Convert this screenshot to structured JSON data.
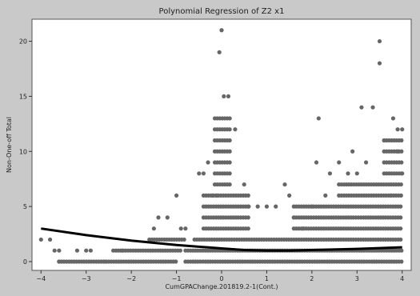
{
  "chart_data": {
    "type": "scatter",
    "title": "Polynomial Regression of Z2 x1",
    "xlabel": "CumGPAChange.201819.2-1(Cont.)",
    "ylabel": "Non-One-off Total",
    "xlim": [
      -4.2,
      4.2
    ],
    "ylim": [
      -0.8,
      22
    ],
    "xticks": [
      -4,
      -3,
      -2,
      -1,
      0,
      1,
      2,
      3,
      4
    ],
    "yticks": [
      0,
      5,
      10,
      15,
      20
    ],
    "grid": false,
    "legend": "none",
    "colors": {
      "points": "#666666",
      "fit": "#000000",
      "panel": "#ffffff",
      "frame": "#c9c9c9"
    },
    "points": [
      [
        -4.0,
        2
      ],
      [
        -3.8,
        2
      ],
      [
        -3.7,
        1
      ],
      [
        -3.6,
        0
      ],
      [
        -3.6,
        1
      ],
      [
        -3.2,
        1
      ],
      [
        -3.0,
        1
      ],
      [
        -2.9,
        1
      ],
      [
        -2.6,
        0
      ],
      [
        -2.2,
        1
      ],
      [
        -1.5,
        3
      ],
      [
        -1.4,
        4
      ],
      [
        -1.2,
        4
      ],
      [
        -1.0,
        6
      ],
      [
        -0.9,
        3
      ],
      [
        -0.8,
        3
      ],
      [
        -0.5,
        8
      ],
      [
        -0.4,
        8
      ],
      [
        -0.3,
        9
      ],
      [
        -0.2,
        6
      ],
      [
        -0.1,
        6
      ],
      [
        -0.05,
        19
      ],
      [
        0.0,
        21
      ],
      [
        0.05,
        15
      ],
      [
        0.15,
        15
      ],
      [
        0.3,
        12
      ],
      [
        0.5,
        7
      ],
      [
        0.6,
        5
      ],
      [
        0.8,
        5
      ],
      [
        1.0,
        5
      ],
      [
        1.2,
        5
      ],
      [
        1.5,
        6
      ],
      [
        1.6,
        4
      ],
      [
        1.8,
        3
      ],
      [
        2.1,
        9
      ],
      [
        2.15,
        13
      ],
      [
        2.3,
        6
      ],
      [
        2.4,
        8
      ],
      [
        2.6,
        9
      ],
      [
        2.8,
        8
      ],
      [
        3.0,
        8
      ],
      [
        3.1,
        14
      ],
      [
        3.35,
        14
      ],
      [
        3.5,
        20
      ],
      [
        3.5,
        18
      ],
      [
        3.6,
        11
      ],
      [
        3.8,
        13
      ],
      [
        3.9,
        12
      ],
      [
        4.0,
        12
      ],
      [
        3.75,
        6
      ],
      [
        3.9,
        10
      ],
      [
        4.0,
        8
      ],
      [
        2.9,
        10
      ],
      [
        3.2,
        9
      ],
      [
        1.4,
        7
      ],
      [
        2.0,
        5
      ]
    ],
    "dense_columns": [
      {
        "x_range": [
          -3.6,
          -1.0
        ],
        "y_values": [
          0
        ]
      },
      {
        "x_range": [
          -2.4,
          -0.9
        ],
        "y_values": [
          1
        ]
      },
      {
        "x_range": [
          -1.6,
          -0.8
        ],
        "y_values": [
          2
        ]
      },
      {
        "x_range": [
          -0.8,
          4.0
        ],
        "y_values": [
          0
        ]
      },
      {
        "x_range": [
          -0.8,
          4.0
        ],
        "y_values": [
          1
        ]
      },
      {
        "x_range": [
          -0.6,
          4.0
        ],
        "y_values": [
          2
        ]
      },
      {
        "x_range": [
          -0.4,
          0.6
        ],
        "y_values": [
          3,
          4,
          5,
          6
        ]
      },
      {
        "x_range": [
          -0.15,
          0.2
        ],
        "y_values": [
          7,
          8,
          9,
          10,
          11,
          12,
          13
        ]
      },
      {
        "x_range": [
          1.6,
          4.0
        ],
        "y_values": [
          3,
          4,
          5
        ]
      },
      {
        "x_range": [
          2.6,
          4.0
        ],
        "y_values": [
          6,
          7
        ]
      },
      {
        "x_range": [
          3.6,
          4.0
        ],
        "y_values": [
          8,
          9,
          10,
          11
        ]
      }
    ],
    "fit_curve": [
      [
        -4.0,
        3.0
      ],
      [
        -3.0,
        2.4
      ],
      [
        -2.0,
        1.9
      ],
      [
        -1.0,
        1.5
      ],
      [
        0.0,
        1.2
      ],
      [
        0.5,
        1.05
      ],
      [
        1.0,
        1.0
      ],
      [
        1.5,
        1.0
      ],
      [
        2.0,
        1.05
      ],
      [
        3.0,
        1.15
      ],
      [
        4.0,
        1.3
      ]
    ]
  }
}
